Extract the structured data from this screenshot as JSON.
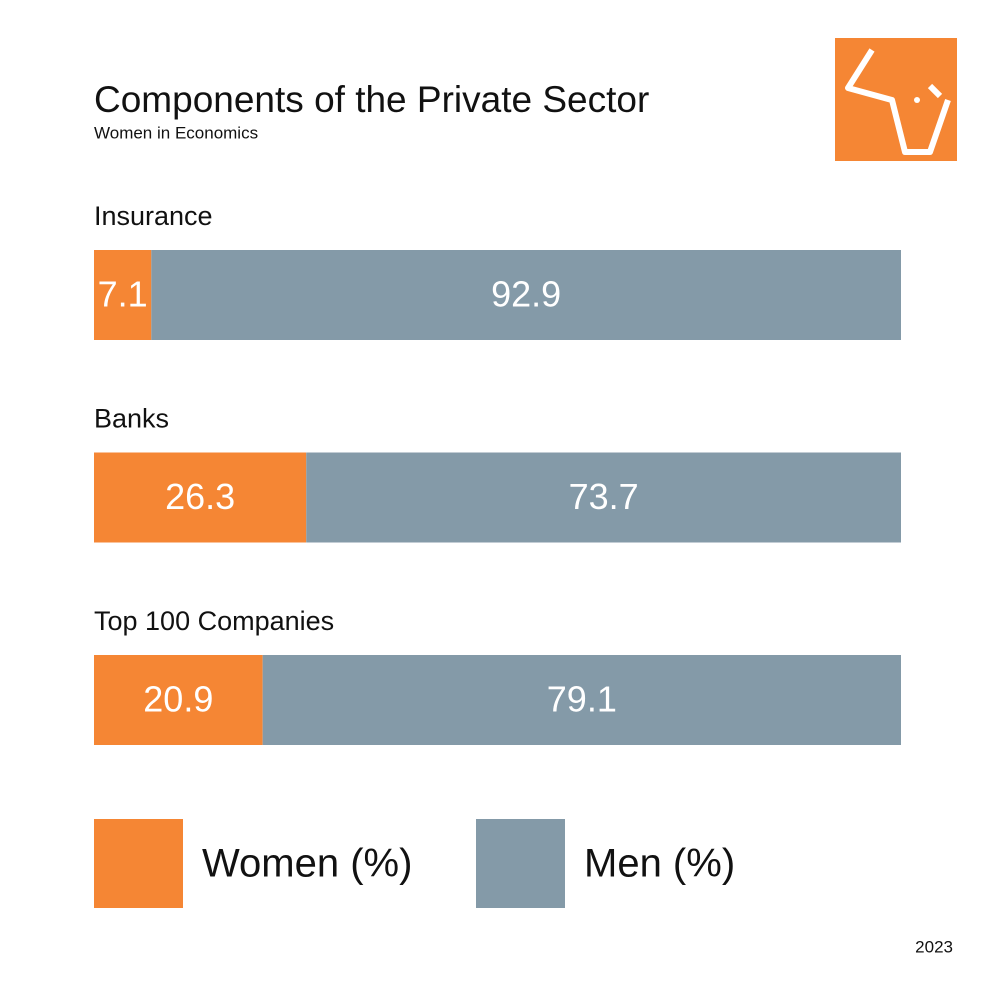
{
  "chart_data": {
    "type": "stacked-bar-horizontal",
    "title": "Components of the Private Sector",
    "subtitle": "Women in Economics",
    "footnote": "2023",
    "categories": [
      "Insurance",
      "Banks",
      "Top 100 Companies"
    ],
    "series": [
      {
        "name": "Women (%)",
        "color": "#f58634",
        "values": [
          7.1,
          26.3,
          20.9
        ]
      },
      {
        "name": "Men (%)",
        "color": "#849aa8",
        "values": [
          92.9,
          73.7,
          79.1
        ]
      }
    ],
    "xlim": [
      0,
      100
    ]
  }
}
